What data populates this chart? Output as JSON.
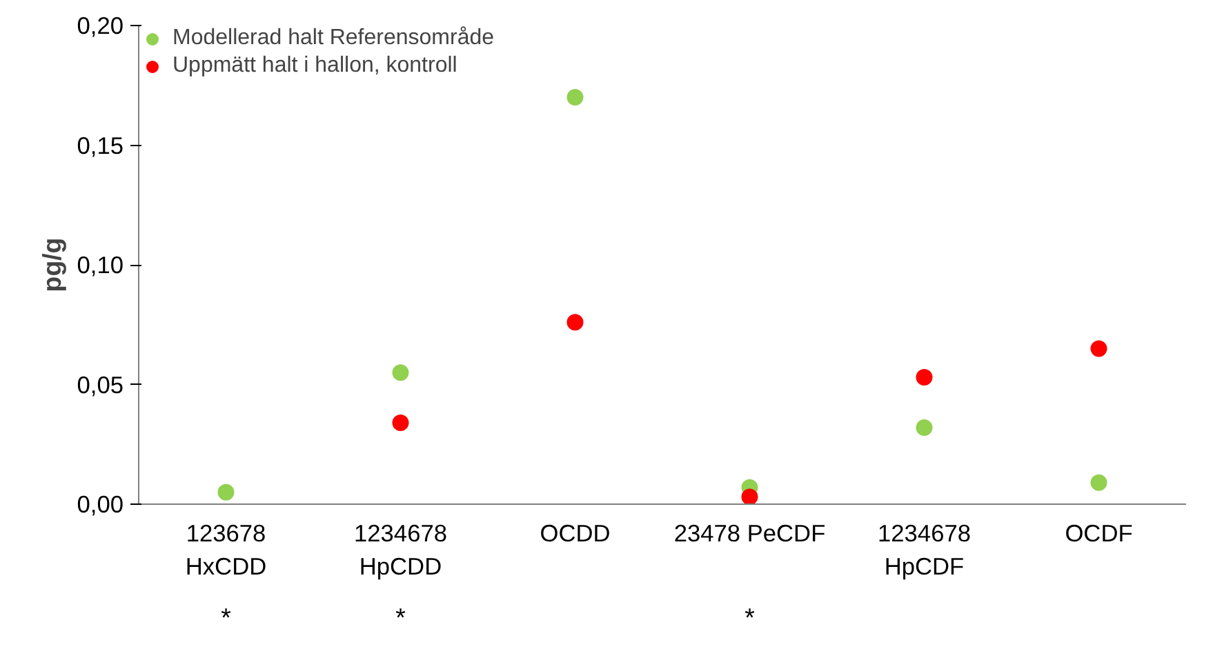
{
  "chart_data": {
    "type": "scatter",
    "ylabel": "pg/g",
    "categories": [
      "123678\nHxCDD",
      "1234678\nHpCDD",
      "OCDD",
      "23478 PeCDF",
      "1234678\nHpCDF",
      "OCDF"
    ],
    "series": [
      {
        "name": "Modellerad halt Referensområde",
        "color": "#92d050",
        "values": [
          0.005,
          0.055,
          0.17,
          0.007,
          0.032,
          0.009
        ]
      },
      {
        "name": "Uppmätt halt i hallon, kontroll",
        "color": "#ff0000",
        "values": [
          null,
          0.034,
          0.076,
          0.003,
          0.053,
          0.065
        ]
      }
    ],
    "ylim": [
      0,
      0.2
    ],
    "yticks": [
      {
        "value": 0,
        "label": "0,00"
      },
      {
        "value": 0.05,
        "label": "0,05"
      },
      {
        "value": 0.1,
        "label": "0,10"
      },
      {
        "value": 0.15,
        "label": "0,15"
      },
      {
        "value": 0.2,
        "label": "0,20"
      }
    ],
    "annotations": [
      "*",
      "*",
      "*"
    ],
    "grid": false,
    "legend": "top left",
    "marker": "circle"
  }
}
